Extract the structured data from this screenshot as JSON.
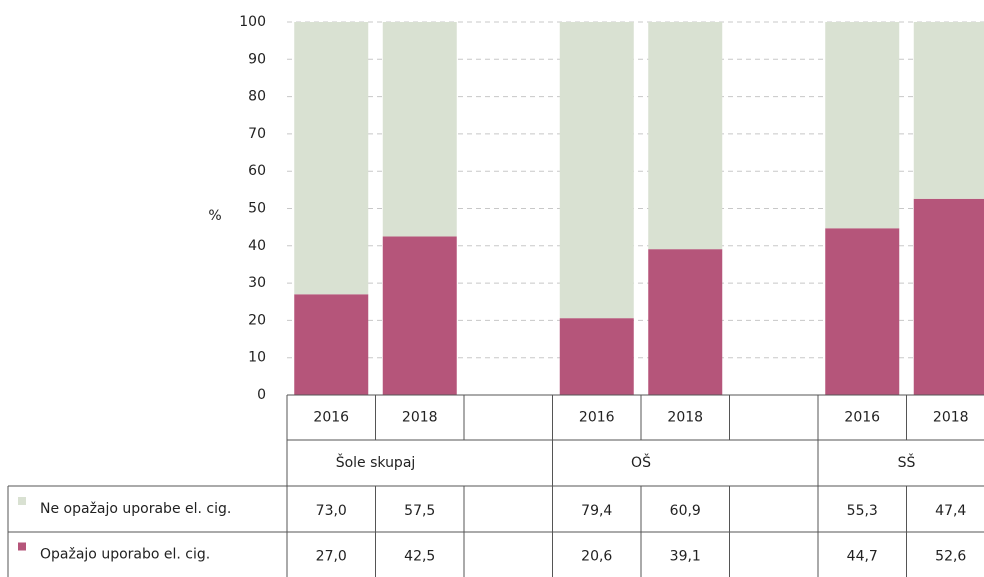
{
  "chart_data": {
    "type": "bar",
    "stacked": true,
    "y_label": "%",
    "categories": [
      "2016",
      "2018",
      null,
      "2016",
      "2018",
      null,
      "2016",
      "2018"
    ],
    "groups": [
      "Šole skupaj",
      "OŠ",
      "SŠ"
    ],
    "series": [
      {
        "name": "Ne opažajo uporabe el. cig.",
        "color": "#d9e1d2",
        "values": [
          73.0,
          57.5,
          null,
          79.4,
          60.9,
          null,
          55.3,
          47.4
        ],
        "value_labels": [
          "73,0",
          "57,5",
          null,
          "79,4",
          "60,9",
          null,
          "55,3",
          "47,4"
        ]
      },
      {
        "name": "Opažajo uporabo el. cig.",
        "color": "#b5557a",
        "values": [
          27.0,
          42.5,
          null,
          20.6,
          39.1,
          null,
          44.7,
          52.6
        ],
        "value_labels": [
          "27,0",
          "42,5",
          null,
          "20,6",
          "39,1",
          null,
          "44,7",
          "52,6"
        ]
      }
    ],
    "ylim": [
      0,
      100
    ],
    "yticks": [
      0,
      10,
      20,
      30,
      40,
      50,
      60,
      70,
      80,
      90,
      100
    ],
    "grid": true
  }
}
